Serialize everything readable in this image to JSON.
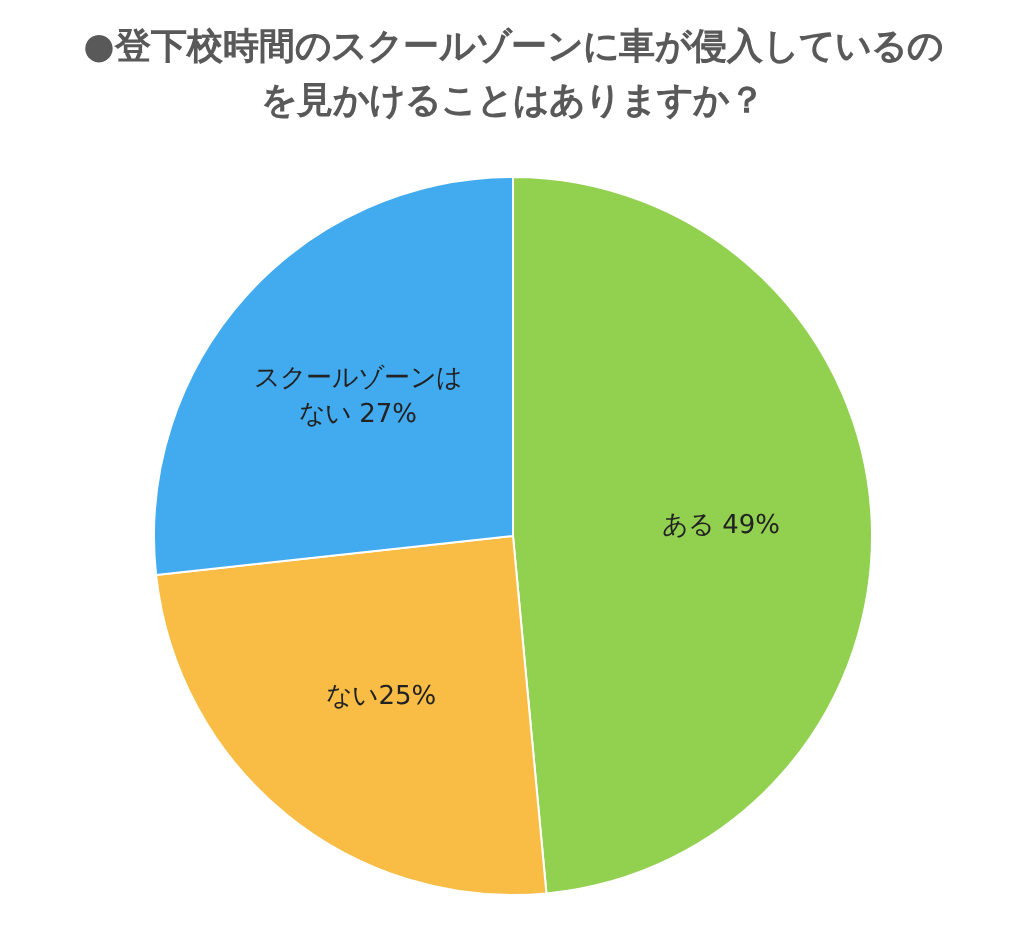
{
  "chart_data": {
    "type": "pie",
    "title": "●登下校時間のスクールゾーンに車が侵入しているのを見かけることはありますか？",
    "categories": [
      "ある",
      "ない",
      "スクールゾーンはない"
    ],
    "values": [
      49,
      25,
      27
    ],
    "colors": [
      "#92d050",
      "#f9bc45",
      "#42aaee"
    ],
    "value_labels": [
      " 49%",
      "25%",
      " 27%"
    ],
    "legend": false
  }
}
